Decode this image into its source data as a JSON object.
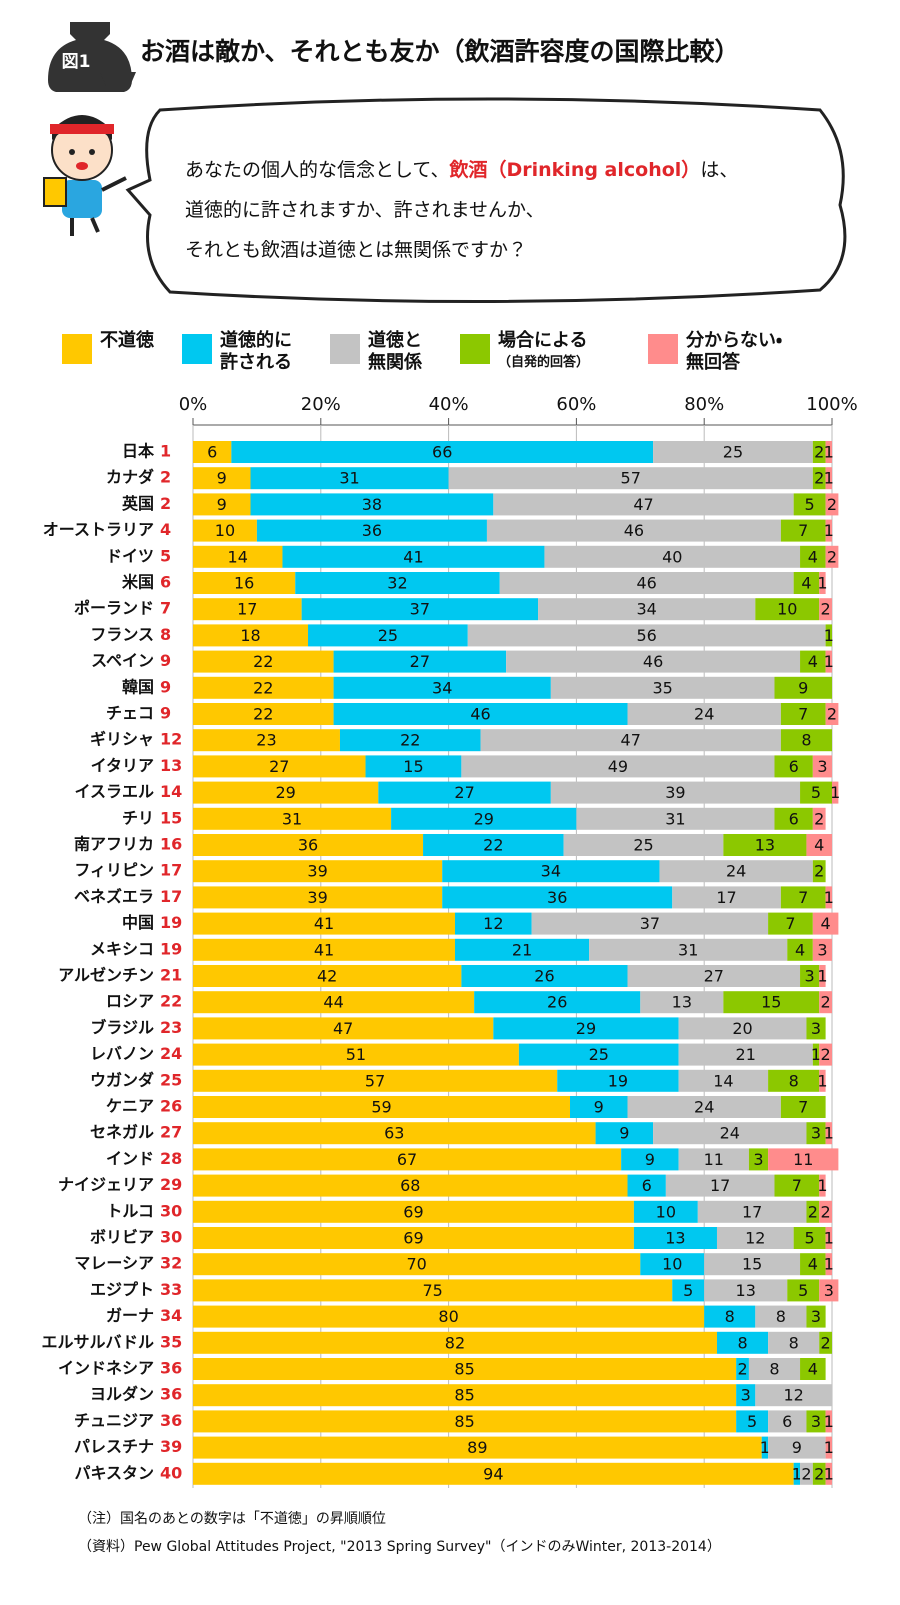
{
  "header": {
    "badge": "図1",
    "title": "お酒は敵か、それとも友か（飲酒許容度の国際比較）"
  },
  "question": {
    "line1_start": "あなたの個人的な信念として、",
    "line1_highlight": "飲酒（Drinking alcohol）",
    "line1_end": "は、",
    "line2": "道徳的に許されますか、許されませんか、",
    "line3": "それとも飲酒は道徳とは無関係ですか？"
  },
  "chart_data": {
    "type": "stacked-bar",
    "orientation": "horizontal",
    "categories": [
      "日本",
      "カナダ",
      "英国",
      "オーストラリア",
      "ドイツ",
      "米国",
      "ポーランド",
      "フランス",
      "スペイン",
      "韓国",
      "チェコ",
      "ギリシャ",
      "イタリア",
      "イスラエル",
      "チリ",
      "南アフリカ",
      "フィリピン",
      "ベネズエラ",
      "中国",
      "メキシコ",
      "アルゼンチン",
      "ロシア",
      "ブラジル",
      "レバノン",
      "ウガンダ",
      "ケニア",
      "セネガル",
      "インド",
      "ナイジェリア",
      "トルコ",
      "ボリビア",
      "マレーシア",
      "エジプト",
      "ガーナ",
      "エルサルバドル",
      "インドネシア",
      "ヨルダン",
      "チュニジア",
      "パレスチナ",
      "パキスタン"
    ],
    "ranks": [
      1,
      2,
      2,
      4,
      5,
      6,
      7,
      8,
      9,
      9,
      9,
      12,
      13,
      14,
      15,
      16,
      17,
      17,
      19,
      19,
      21,
      22,
      23,
      24,
      25,
      26,
      27,
      28,
      29,
      30,
      30,
      32,
      33,
      34,
      35,
      36,
      36,
      36,
      39,
      40
    ],
    "rank_color": "#e0262a",
    "xlim": [
      0,
      100
    ],
    "xticks": [
      {
        "value": 0,
        "label": "0%"
      },
      {
        "value": 20,
        "label": "20%"
      },
      {
        "value": 40,
        "label": "40%"
      },
      {
        "value": 60,
        "label": "60%"
      },
      {
        "value": 80,
        "label": "80%"
      },
      {
        "value": 100,
        "label": "100%"
      }
    ],
    "grid": true,
    "series": [
      {
        "name": "不道徳",
        "color": "#ffc800",
        "values": [
          6,
          9,
          9,
          10,
          14,
          16,
          17,
          18,
          22,
          22,
          22,
          23,
          27,
          29,
          31,
          36,
          39,
          39,
          41,
          41,
          42,
          44,
          47,
          51,
          57,
          59,
          63,
          67,
          68,
          69,
          69,
          70,
          75,
          80,
          82,
          85,
          85,
          85,
          89,
          94
        ]
      },
      {
        "name": "道徳的に許される",
        "color": "#00c8f0",
        "values": [
          66,
          31,
          38,
          36,
          41,
          32,
          37,
          25,
          27,
          34,
          46,
          22,
          15,
          27,
          29,
          22,
          34,
          36,
          12,
          21,
          26,
          26,
          29,
          25,
          19,
          9,
          9,
          9,
          6,
          10,
          13,
          10,
          5,
          8,
          8,
          2,
          3,
          5,
          1,
          1
        ]
      },
      {
        "name": "道徳と無関係",
        "color": "#c3c3c3",
        "values": [
          25,
          57,
          47,
          46,
          40,
          46,
          34,
          56,
          46,
          35,
          24,
          47,
          49,
          39,
          31,
          25,
          24,
          17,
          37,
          31,
          27,
          13,
          20,
          21,
          14,
          24,
          24,
          11,
          17,
          17,
          12,
          15,
          13,
          8,
          8,
          8,
          12,
          6,
          9,
          2
        ]
      },
      {
        "name": "場合による",
        "note": "（自発的回答）",
        "color": "#8cc800",
        "values": [
          2,
          2,
          5,
          7,
          4,
          4,
          10,
          1,
          4,
          9,
          7,
          8,
          6,
          5,
          6,
          13,
          2,
          7,
          7,
          4,
          3,
          15,
          3,
          1,
          8,
          7,
          3,
          3,
          7,
          2,
          5,
          4,
          5,
          3,
          2,
          4,
          null,
          3,
          null,
          2
        ]
      },
      {
        "name": "分からない・無回答",
        "color": "#ff8c8c",
        "values": [
          1,
          1,
          2,
          1,
          2,
          1,
          2,
          null,
          1,
          null,
          2,
          null,
          3,
          1,
          2,
          4,
          null,
          1,
          4,
          3,
          1,
          2,
          null,
          2,
          1,
          null,
          1,
          11,
          1,
          2,
          1,
          1,
          3,
          null,
          null,
          null,
          null,
          1,
          1,
          1
        ]
      }
    ]
  },
  "notes": {
    "note": "（注）国名のあとの数字は「不道徳」の昇順順位",
    "source": "（資料）Pew Global Attitudes Project, \"2013 Spring Survey\"（インドのみWinter, 2013-2014）"
  }
}
